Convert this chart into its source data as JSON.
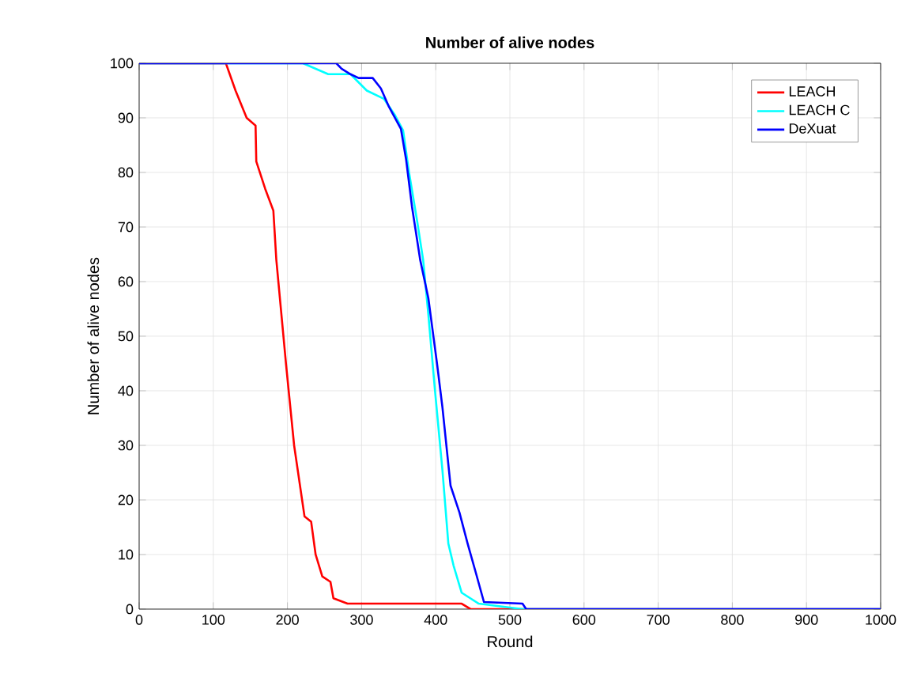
{
  "chart_data": {
    "type": "line",
    "title": "Number of alive nodes",
    "xlabel": "Round",
    "ylabel": "Number of alive nodes",
    "xlim": [
      0,
      1000
    ],
    "ylim": [
      0,
      100
    ],
    "xticks": [
      0,
      100,
      200,
      300,
      400,
      500,
      600,
      700,
      800,
      900,
      1000
    ],
    "yticks": [
      0,
      10,
      20,
      30,
      40,
      50,
      60,
      70,
      80,
      90,
      100
    ],
    "grid": true,
    "legend": "top right",
    "marker": "none",
    "line_style": "solid",
    "series": [
      {
        "name": "LEACH",
        "color": "#ff0000",
        "x": [
          0,
          117,
          130,
          145,
          157,
          158,
          170,
          181,
          185,
          198,
          209,
          223,
          232,
          238,
          247,
          258,
          262,
          281,
          435,
          447,
          1000
        ],
        "values": [
          100,
          100,
          95,
          90,
          88.6,
          82,
          77,
          73,
          64,
          45,
          30,
          17,
          16,
          10,
          6,
          5,
          2,
          1,
          1,
          0,
          0
        ]
      },
      {
        "name": "LEACH C",
        "color": "#00ffff",
        "x": [
          0,
          221,
          255,
          285,
          307,
          330,
          345,
          356,
          364,
          375,
          383,
          390,
          399,
          409,
          417,
          424,
          435,
          458,
          517,
          1000
        ],
        "values": [
          100,
          100,
          98,
          98,
          95,
          93.5,
          90.5,
          87.7,
          80,
          71,
          64,
          54,
          40,
          25.5,
          12,
          8,
          3,
          1,
          0,
          0
        ]
      },
      {
        "name": "DeXuat",
        "color": "#0000ff",
        "x": [
          0,
          266,
          273,
          285,
          296,
          315,
          326,
          337,
          353,
          360,
          368,
          379,
          390,
          402,
          409,
          420,
          432,
          443,
          454,
          465,
          517,
          522,
          1000
        ],
        "values": [
          100,
          100,
          99,
          98,
          97.3,
          97.3,
          95.4,
          92,
          88,
          82.4,
          73.7,
          64,
          57,
          44.7,
          37,
          22.6,
          17.7,
          12,
          6.7,
          1.3,
          1,
          0,
          0
        ]
      }
    ]
  }
}
